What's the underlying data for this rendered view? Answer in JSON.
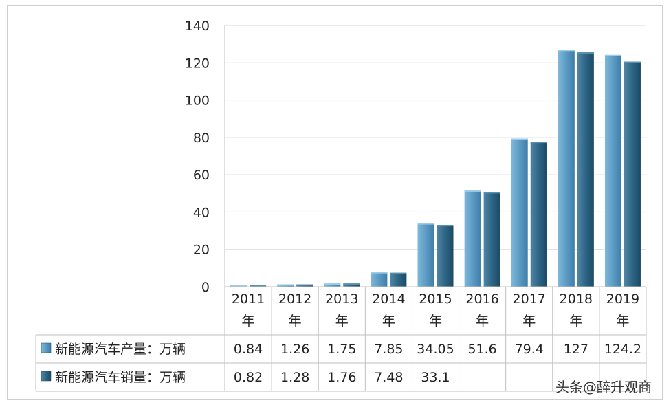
{
  "chart_data": {
    "type": "bar",
    "categories": [
      "2011年",
      "2012年",
      "2013年",
      "2014年",
      "2015年",
      "2016年",
      "2017年",
      "2018年",
      "2019年"
    ],
    "category_years": [
      "2011",
      "2012",
      "2013",
      "2014",
      "2015",
      "2016",
      "2017",
      "2018",
      "2019"
    ],
    "category_suffix": "年",
    "ylim": [
      0,
      140
    ],
    "yticks": [
      "0",
      "20",
      "40",
      "60",
      "80",
      "100",
      "120",
      "140"
    ],
    "grid": true,
    "series": [
      {
        "name": "新能源汽车产量：万辆",
        "values": [
          0.84,
          1.26,
          1.75,
          7.85,
          34.05,
          51.6,
          79.4,
          127,
          124.2
        ],
        "labels": [
          "0.84",
          "1.26",
          "1.75",
          "7.85",
          "34.05",
          "51.6",
          "79.4",
          "127",
          "124.2"
        ],
        "color": "#5b9bc4"
      },
      {
        "name": "新能源汽车销量：万辆",
        "values": [
          0.82,
          1.28,
          1.76,
          7.48,
          33.1,
          50.7,
          77.7,
          125.6,
          120.6
        ],
        "labels": [
          "0.82",
          "1.28",
          "1.76",
          "7.48",
          "33.1",
          "",
          "",
          "",
          ""
        ],
        "color": "#2e6585"
      }
    ],
    "legend": "data-table"
  },
  "watermark": "头条@醉升观商"
}
